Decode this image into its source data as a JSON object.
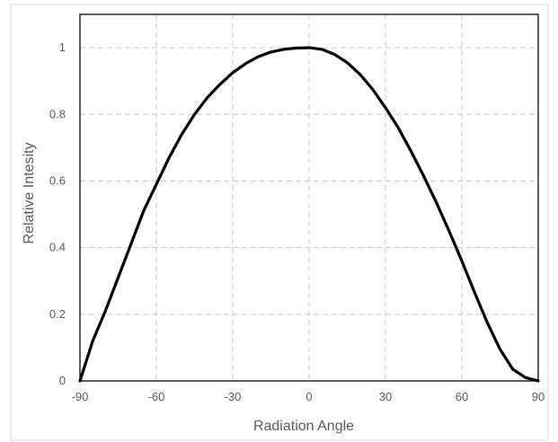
{
  "chart_data": {
    "type": "line",
    "title": "",
    "xlabel": "Radiation Angle",
    "ylabel": "Relative Intesity",
    "xlim": [
      -90,
      90
    ],
    "ylim": [
      0,
      1.1
    ],
    "x_ticks": [
      -90,
      -60,
      -30,
      0,
      30,
      60,
      90
    ],
    "y_ticks": [
      0,
      0.2,
      0.4,
      0.6,
      0.8,
      1
    ],
    "x_tick_labels": [
      "-90",
      "-60",
      "-30",
      "0",
      "30",
      "60",
      "90"
    ],
    "y_tick_labels": [
      "0",
      "0.2",
      "0.4",
      "0.6",
      "0.8",
      "1"
    ],
    "grid": true,
    "legend": "none",
    "line_color": "#000000",
    "grid_color": "#c8c8c8",
    "series": [
      {
        "x": [
          -90,
          -85,
          -80,
          -75,
          -70,
          -65,
          -60,
          -55,
          -50,
          -45,
          -40,
          -35,
          -30,
          -25,
          -20,
          -15,
          -10,
          -5,
          0,
          5,
          10,
          15,
          20,
          25,
          30,
          35,
          40,
          45,
          50,
          55,
          60,
          65,
          70,
          75,
          80,
          85,
          90
        ],
        "values": [
          0,
          0.12,
          0.21,
          0.31,
          0.41,
          0.51,
          0.59,
          0.67,
          0.74,
          0.8,
          0.85,
          0.89,
          0.925,
          0.952,
          0.973,
          0.987,
          0.995,
          0.999,
          1,
          0.995,
          0.98,
          0.955,
          0.92,
          0.875,
          0.82,
          0.76,
          0.69,
          0.615,
          0.535,
          0.45,
          0.36,
          0.265,
          0.175,
          0.095,
          0.035,
          0.01,
          0
        ]
      }
    ]
  }
}
